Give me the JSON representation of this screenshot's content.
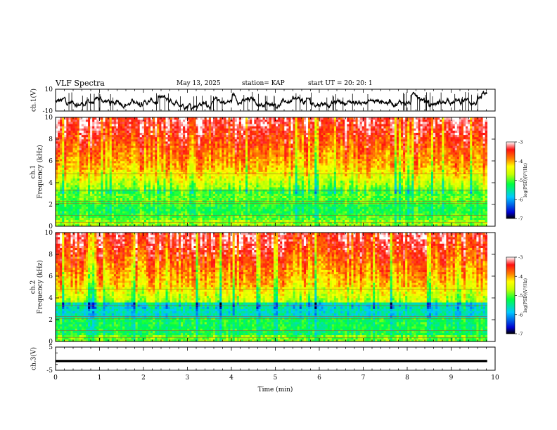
{
  "header": {
    "title": "VLF Spectra",
    "date": "May 13, 2025",
    "station": "station= KAP",
    "start": "start  UT  =   20: 20: 1"
  },
  "chart_data": [
    {
      "type": "line",
      "name": "ch1-waveform",
      "ylabel": "ch.1(V)",
      "ylim": [
        -10,
        10
      ],
      "yticks": [
        "10",
        "-10"
      ],
      "xlim": [
        0,
        10
      ],
      "note": "noisy waveform, roughly between -8 and +8 V"
    },
    {
      "type": "heatmap",
      "name": "ch1-spectrogram",
      "ylabel": "ch.1\nFrequency (kHz)",
      "ylabel_line1": "ch.1",
      "ylabel_line2": "Frequency  (kHz)",
      "ylim": [
        0,
        10
      ],
      "yticks": [
        "0",
        "2",
        "4",
        "6",
        "8",
        "10"
      ],
      "xlim": [
        0,
        10
      ],
      "data_end_min": 9.82,
      "colorbar": {
        "label": "log(PSD)(V²/Hz)",
        "min": -7,
        "max": -3,
        "ticks": [
          "-3",
          "-4",
          "-5",
          "-6",
          "-7"
        ]
      }
    },
    {
      "type": "heatmap",
      "name": "ch2-spectrogram",
      "ylabel_line1": "ch.2",
      "ylabel_line2": "Frequency  (kHz)",
      "ylim": [
        0,
        10
      ],
      "yticks": [
        "0",
        "2",
        "4",
        "6",
        "8",
        "10"
      ],
      "xlim": [
        0,
        10
      ],
      "data_end_min": 9.82,
      "colorbar": {
        "label": "log(PSD)(V²/Hz)",
        "min": -7,
        "max": -3,
        "ticks": [
          "-3",
          "-4",
          "-5",
          "-6",
          "-7"
        ]
      }
    },
    {
      "type": "line",
      "name": "ch3-waveform",
      "ylabel": "ch.3(V)",
      "ylim": [
        -5,
        5
      ],
      "yticks": [
        "5",
        "-5"
      ],
      "xlim": [
        0,
        10
      ],
      "note": "near-constant trace around -1 V"
    }
  ],
  "xaxis": {
    "label": "Time  (min)",
    "ticks": [
      "0",
      "1",
      "2",
      "3",
      "4",
      "5",
      "6",
      "7",
      "8",
      "9",
      "10"
    ]
  },
  "colorbar_label": "log(PSD)(V²/Hz)"
}
